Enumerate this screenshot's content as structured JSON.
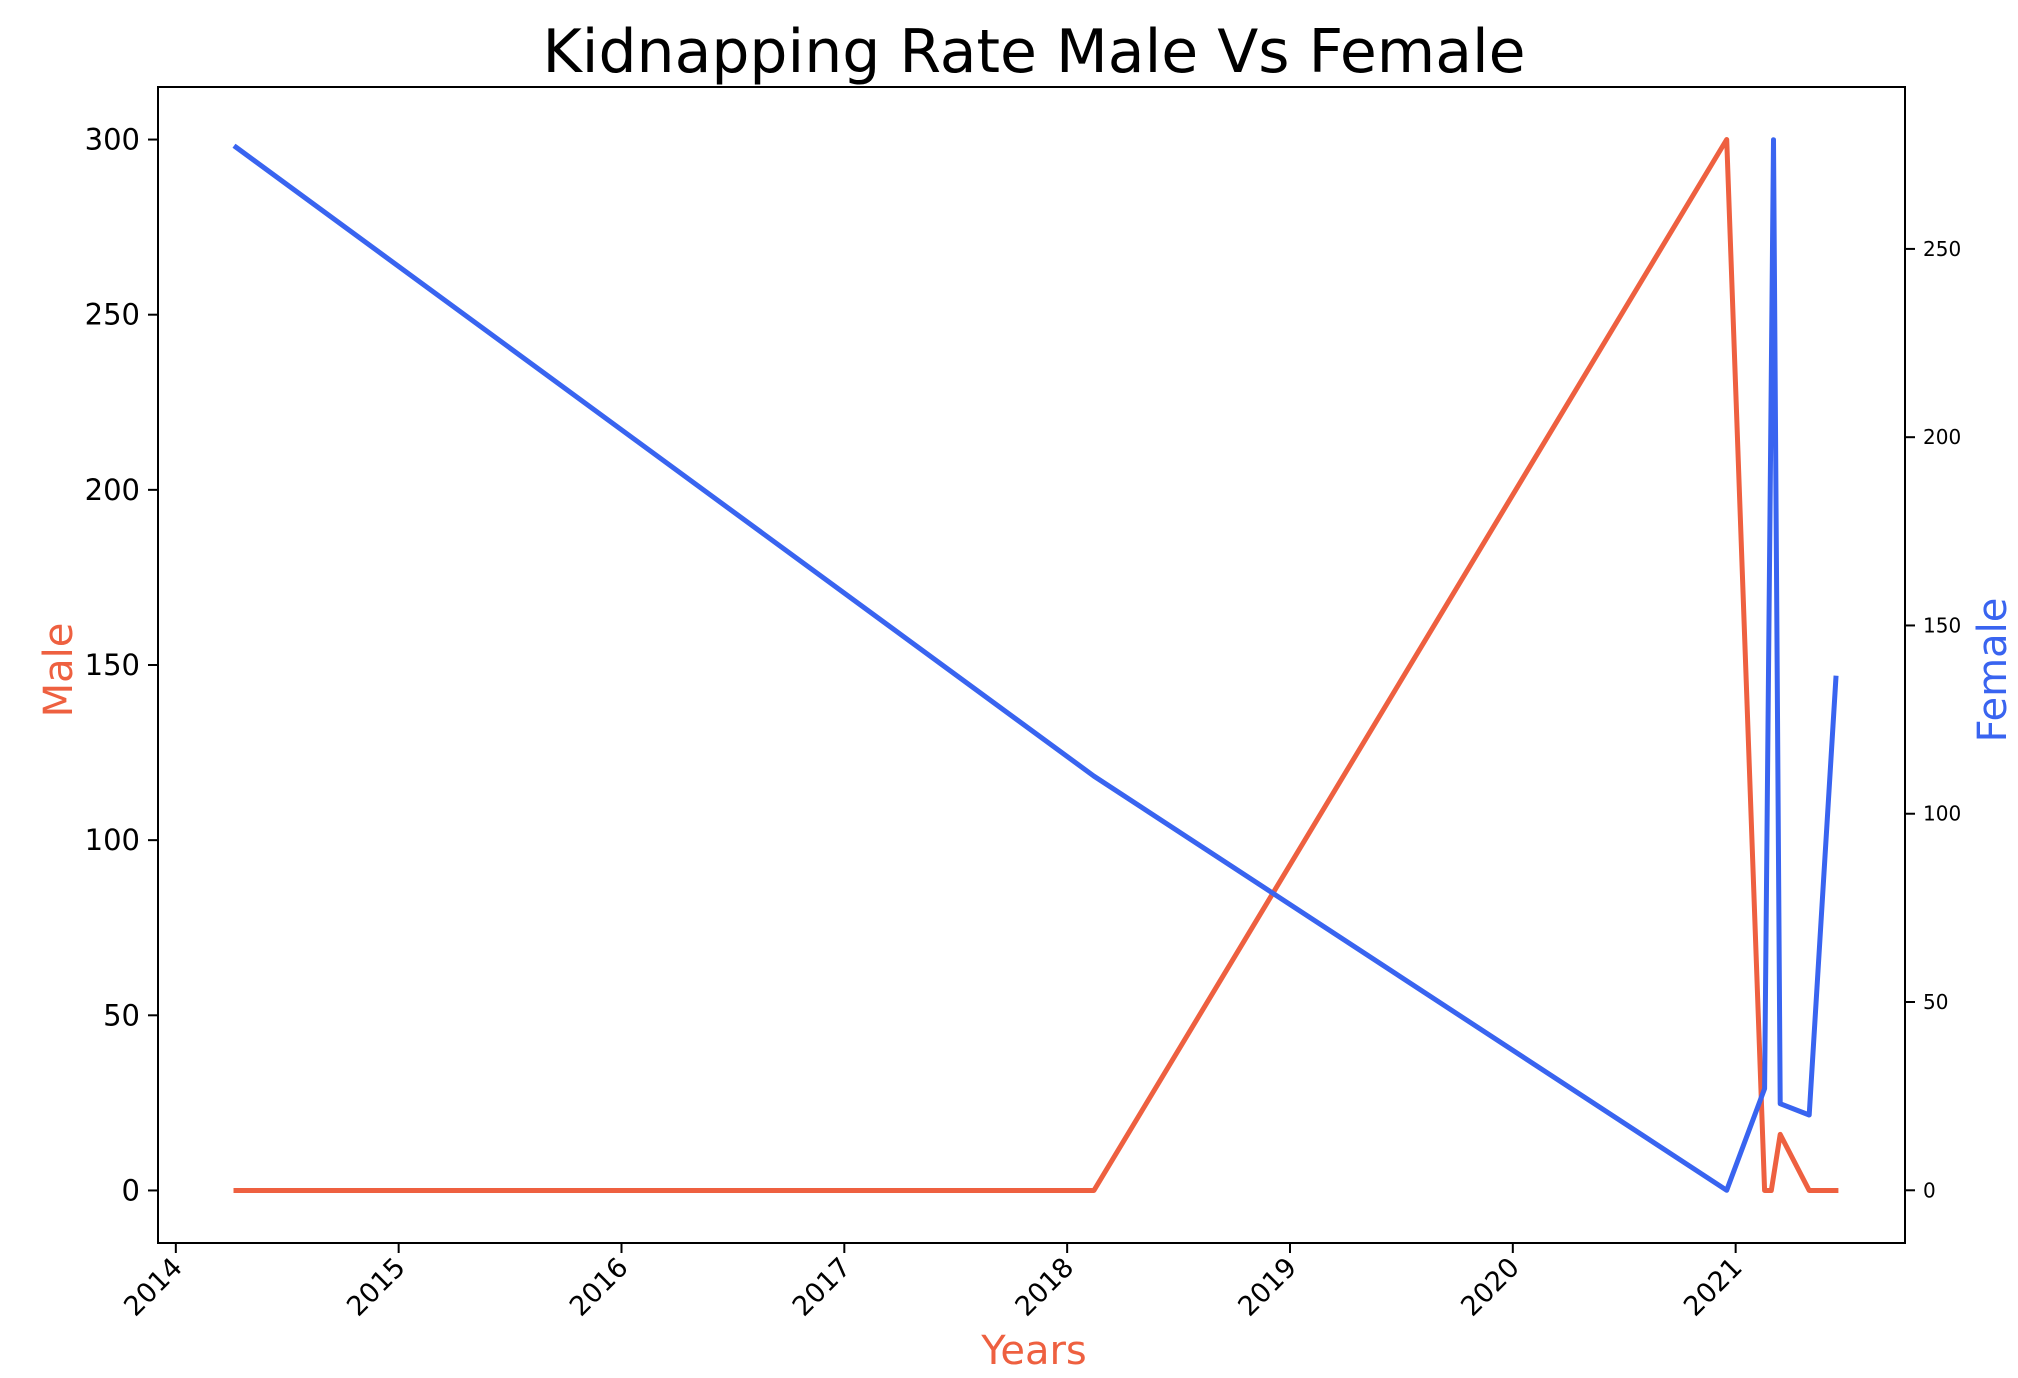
{
  "chart_data": {
    "type": "line",
    "title": "Kidnapping Rate Male Vs Female",
    "xlabel": "Years",
    "ylabel_left": "Male",
    "ylabel_right": "Female",
    "x_tick_labels": [
      "2014",
      "2015",
      "2016",
      "2017",
      "2018",
      "2019",
      "2020",
      "2021"
    ],
    "x_ticks": [
      2014,
      2015,
      2016,
      2017,
      2018,
      2019,
      2020,
      2021
    ],
    "xlim": [
      2013.92,
      2021.76
    ],
    "left_axis": {
      "ylim": [
        -15,
        315
      ],
      "ticks": [
        0,
        50,
        100,
        150,
        200,
        250,
        300
      ],
      "tick_labels": [
        "0",
        "50",
        "100",
        "150",
        "200",
        "250",
        "300"
      ]
    },
    "right_axis": {
      "ylim": [
        -14,
        293
      ],
      "ticks": [
        0,
        50,
        100,
        150,
        200,
        250
      ],
      "tick_labels": [
        "0",
        "50",
        "100",
        "150",
        "200",
        "250"
      ]
    },
    "series": [
      {
        "name": "Male",
        "axis": "left",
        "color": "#EE6040",
        "x": [
          2014.27,
          2018.12,
          2020.96,
          2021.13,
          2021.16,
          2021.2,
          2021.33,
          2021.45
        ],
        "values": [
          0,
          0,
          300,
          0,
          0,
          16,
          0,
          0
        ]
      },
      {
        "name": "Female",
        "axis": "right",
        "color": "#3964F0",
        "x": [
          2014.27,
          2018.12,
          2020.96,
          2021.13,
          2021.17,
          2021.2,
          2021.33,
          2021.45
        ],
        "values": [
          277,
          110,
          0,
          27,
          279,
          23,
          20,
          136
        ]
      }
    ]
  },
  "colors": {
    "male": "#EE6040",
    "female": "#3964F0",
    "text": "#000000"
  }
}
